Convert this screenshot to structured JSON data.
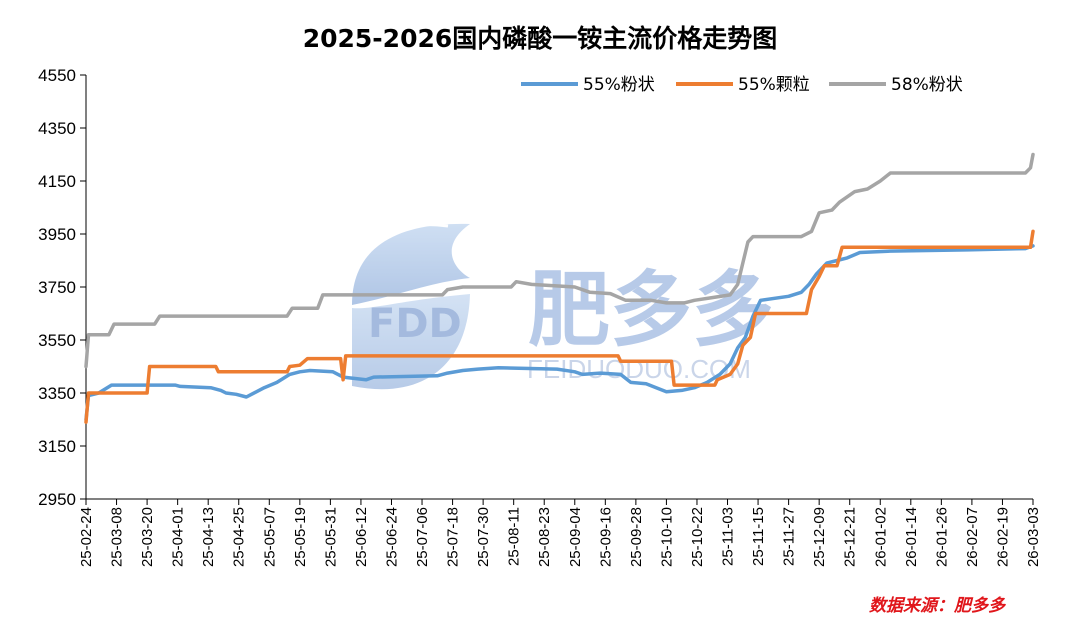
{
  "chart_data": {
    "type": "line",
    "title": "2025-2026国内磷酸一铵主流价格走势图",
    "xlabel": "",
    "ylabel": "",
    "ylim": [
      2950,
      4550
    ],
    "yticks": [
      2950,
      3150,
      3350,
      3550,
      3750,
      3950,
      4150,
      4350,
      4550
    ],
    "x_range": [
      "2025-02-24",
      "2026-03-03"
    ],
    "xtick_labels": [
      "25-02-24",
      "25-03-08",
      "25-03-20",
      "25-04-01",
      "25-04-13",
      "25-04-25",
      "25-05-07",
      "25-05-19",
      "25-05-31",
      "25-06-12",
      "25-06-24",
      "25-07-06",
      "25-07-18",
      "25-07-30",
      "25-08-11",
      "25-08-23",
      "25-09-04",
      "25-09-16",
      "25-09-28",
      "25-10-10",
      "25-10-22",
      "25-11-03",
      "25-11-15",
      "25-11-27",
      "25-12-09",
      "25-12-21",
      "26-01-02",
      "26-01-14",
      "26-01-26",
      "26-02-07",
      "26-02-19",
      "26-03-03"
    ],
    "grid": false,
    "legend_position": "top-right",
    "series": [
      {
        "name": "55%粉状",
        "color": "#5b9bd5",
        "points": [
          [
            "2025-02-24",
            3250
          ],
          [
            "2025-02-25",
            3340
          ],
          [
            "2025-03-01",
            3350
          ],
          [
            "2025-03-06",
            3380
          ],
          [
            "2025-03-31",
            3380
          ],
          [
            "2025-04-02",
            3375
          ],
          [
            "2025-04-14",
            3370
          ],
          [
            "2025-04-18",
            3360
          ],
          [
            "2025-04-20",
            3350
          ],
          [
            "2025-04-24",
            3345
          ],
          [
            "2025-04-28",
            3335
          ],
          [
            "2025-04-30",
            3345
          ],
          [
            "2025-05-02",
            3355
          ],
          [
            "2025-05-05",
            3370
          ],
          [
            "2025-05-10",
            3390
          ],
          [
            "2025-05-15",
            3420
          ],
          [
            "2025-05-19",
            3430
          ],
          [
            "2025-05-23",
            3435
          ],
          [
            "2025-06-01",
            3430
          ],
          [
            "2025-06-03",
            3420
          ],
          [
            "2025-06-05",
            3410
          ],
          [
            "2025-06-14",
            3400
          ],
          [
            "2025-06-17",
            3410
          ],
          [
            "2025-07-12",
            3415
          ],
          [
            "2025-07-16",
            3425
          ],
          [
            "2025-07-22",
            3435
          ],
          [
            "2025-07-28",
            3440
          ],
          [
            "2025-08-05",
            3445
          ],
          [
            "2025-08-28",
            3440
          ],
          [
            "2025-09-04",
            3430
          ],
          [
            "2025-09-07",
            3420
          ],
          [
            "2025-09-14",
            3425
          ],
          [
            "2025-09-22",
            3420
          ],
          [
            "2025-09-26",
            3390
          ],
          [
            "2025-10-02",
            3385
          ],
          [
            "2025-10-06",
            3370
          ],
          [
            "2025-10-10",
            3355
          ],
          [
            "2025-10-16",
            3360
          ],
          [
            "2025-10-21",
            3370
          ],
          [
            "2025-10-26",
            3390
          ],
          [
            "2025-10-31",
            3420
          ],
          [
            "2025-11-04",
            3460
          ],
          [
            "2025-11-07",
            3520
          ],
          [
            "2025-11-10",
            3560
          ],
          [
            "2025-11-13",
            3640
          ],
          [
            "2025-11-16",
            3700
          ],
          [
            "2025-11-27",
            3715
          ],
          [
            "2025-12-02",
            3730
          ],
          [
            "2025-12-05",
            3760
          ],
          [
            "2025-12-08",
            3800
          ],
          [
            "2025-12-12",
            3840
          ],
          [
            "2025-12-16",
            3850
          ],
          [
            "2025-12-20",
            3860
          ],
          [
            "2025-12-25",
            3880
          ],
          [
            "2026-01-05",
            3885
          ],
          [
            "2026-02-05",
            3890
          ],
          [
            "2026-02-28",
            3895
          ],
          [
            "2026-03-03",
            3905
          ]
        ]
      },
      {
        "name": "55%颗粒",
        "color": "#ed7d31",
        "points": [
          [
            "2025-02-24",
            3240
          ],
          [
            "2025-02-25",
            3350
          ],
          [
            "2025-03-20",
            3350
          ],
          [
            "2025-03-21",
            3450
          ],
          [
            "2025-04-16",
            3450
          ],
          [
            "2025-04-17",
            3430
          ],
          [
            "2025-05-14",
            3430
          ],
          [
            "2025-05-15",
            3450
          ],
          [
            "2025-05-19",
            3455
          ],
          [
            "2025-05-22",
            3480
          ],
          [
            "2025-06-04",
            3480
          ],
          [
            "2025-06-05",
            3400
          ],
          [
            "2025-06-06",
            3490
          ],
          [
            "2025-09-21",
            3490
          ],
          [
            "2025-09-22",
            3470
          ],
          [
            "2025-10-12",
            3470
          ],
          [
            "2025-10-13",
            3380
          ],
          [
            "2025-10-29",
            3380
          ],
          [
            "2025-10-30",
            3400
          ],
          [
            "2025-11-04",
            3420
          ],
          [
            "2025-11-07",
            3460
          ],
          [
            "2025-11-09",
            3530
          ],
          [
            "2025-11-12",
            3560
          ],
          [
            "2025-11-14",
            3650
          ],
          [
            "2025-12-04",
            3650
          ],
          [
            "2025-12-06",
            3740
          ],
          [
            "2025-12-09",
            3790
          ],
          [
            "2025-12-11",
            3830
          ],
          [
            "2025-12-16",
            3830
          ],
          [
            "2025-12-18",
            3900
          ],
          [
            "2026-03-02",
            3900
          ],
          [
            "2026-03-03",
            3960
          ]
        ]
      },
      {
        "name": "58%粉状",
        "color": "#a5a5a5",
        "points": [
          [
            "2025-02-24",
            3450
          ],
          [
            "2025-02-25",
            3570
          ],
          [
            "2025-03-05",
            3570
          ],
          [
            "2025-03-07",
            3610
          ],
          [
            "2025-03-23",
            3610
          ],
          [
            "2025-03-25",
            3640
          ],
          [
            "2025-05-14",
            3640
          ],
          [
            "2025-05-16",
            3670
          ],
          [
            "2025-05-26",
            3670
          ],
          [
            "2025-05-28",
            3720
          ],
          [
            "2025-07-14",
            3720
          ],
          [
            "2025-07-16",
            3740
          ],
          [
            "2025-07-22",
            3750
          ],
          [
            "2025-08-10",
            3750
          ],
          [
            "2025-08-12",
            3770
          ],
          [
            "2025-08-18",
            3760
          ],
          [
            "2025-09-04",
            3750
          ],
          [
            "2025-09-10",
            3730
          ],
          [
            "2025-09-18",
            3725
          ],
          [
            "2025-09-24",
            3700
          ],
          [
            "2025-10-04",
            3700
          ],
          [
            "2025-10-10",
            3690
          ],
          [
            "2025-10-17",
            3690
          ],
          [
            "2025-10-21",
            3700
          ],
          [
            "2025-10-28",
            3710
          ],
          [
            "2025-11-04",
            3720
          ],
          [
            "2025-11-07",
            3760
          ],
          [
            "2025-11-09",
            3840
          ],
          [
            "2025-11-11",
            3920
          ],
          [
            "2025-11-13",
            3940
          ],
          [
            "2025-12-02",
            3940
          ],
          [
            "2025-12-06",
            3960
          ],
          [
            "2025-12-09",
            4030
          ],
          [
            "2025-12-14",
            4040
          ],
          [
            "2025-12-17",
            4070
          ],
          [
            "2025-12-23",
            4110
          ],
          [
            "2025-12-28",
            4120
          ],
          [
            "2026-01-02",
            4150
          ],
          [
            "2026-01-06",
            4180
          ],
          [
            "2026-02-28",
            4180
          ],
          [
            "2026-03-02",
            4200
          ],
          [
            "2026-03-03",
            4250
          ]
        ]
      }
    ],
    "source_note": "数据来源：肥多多",
    "watermark": {
      "logo": "FDD",
      "brand": "肥多多",
      "site": "FEIDUODUO.COM"
    }
  }
}
